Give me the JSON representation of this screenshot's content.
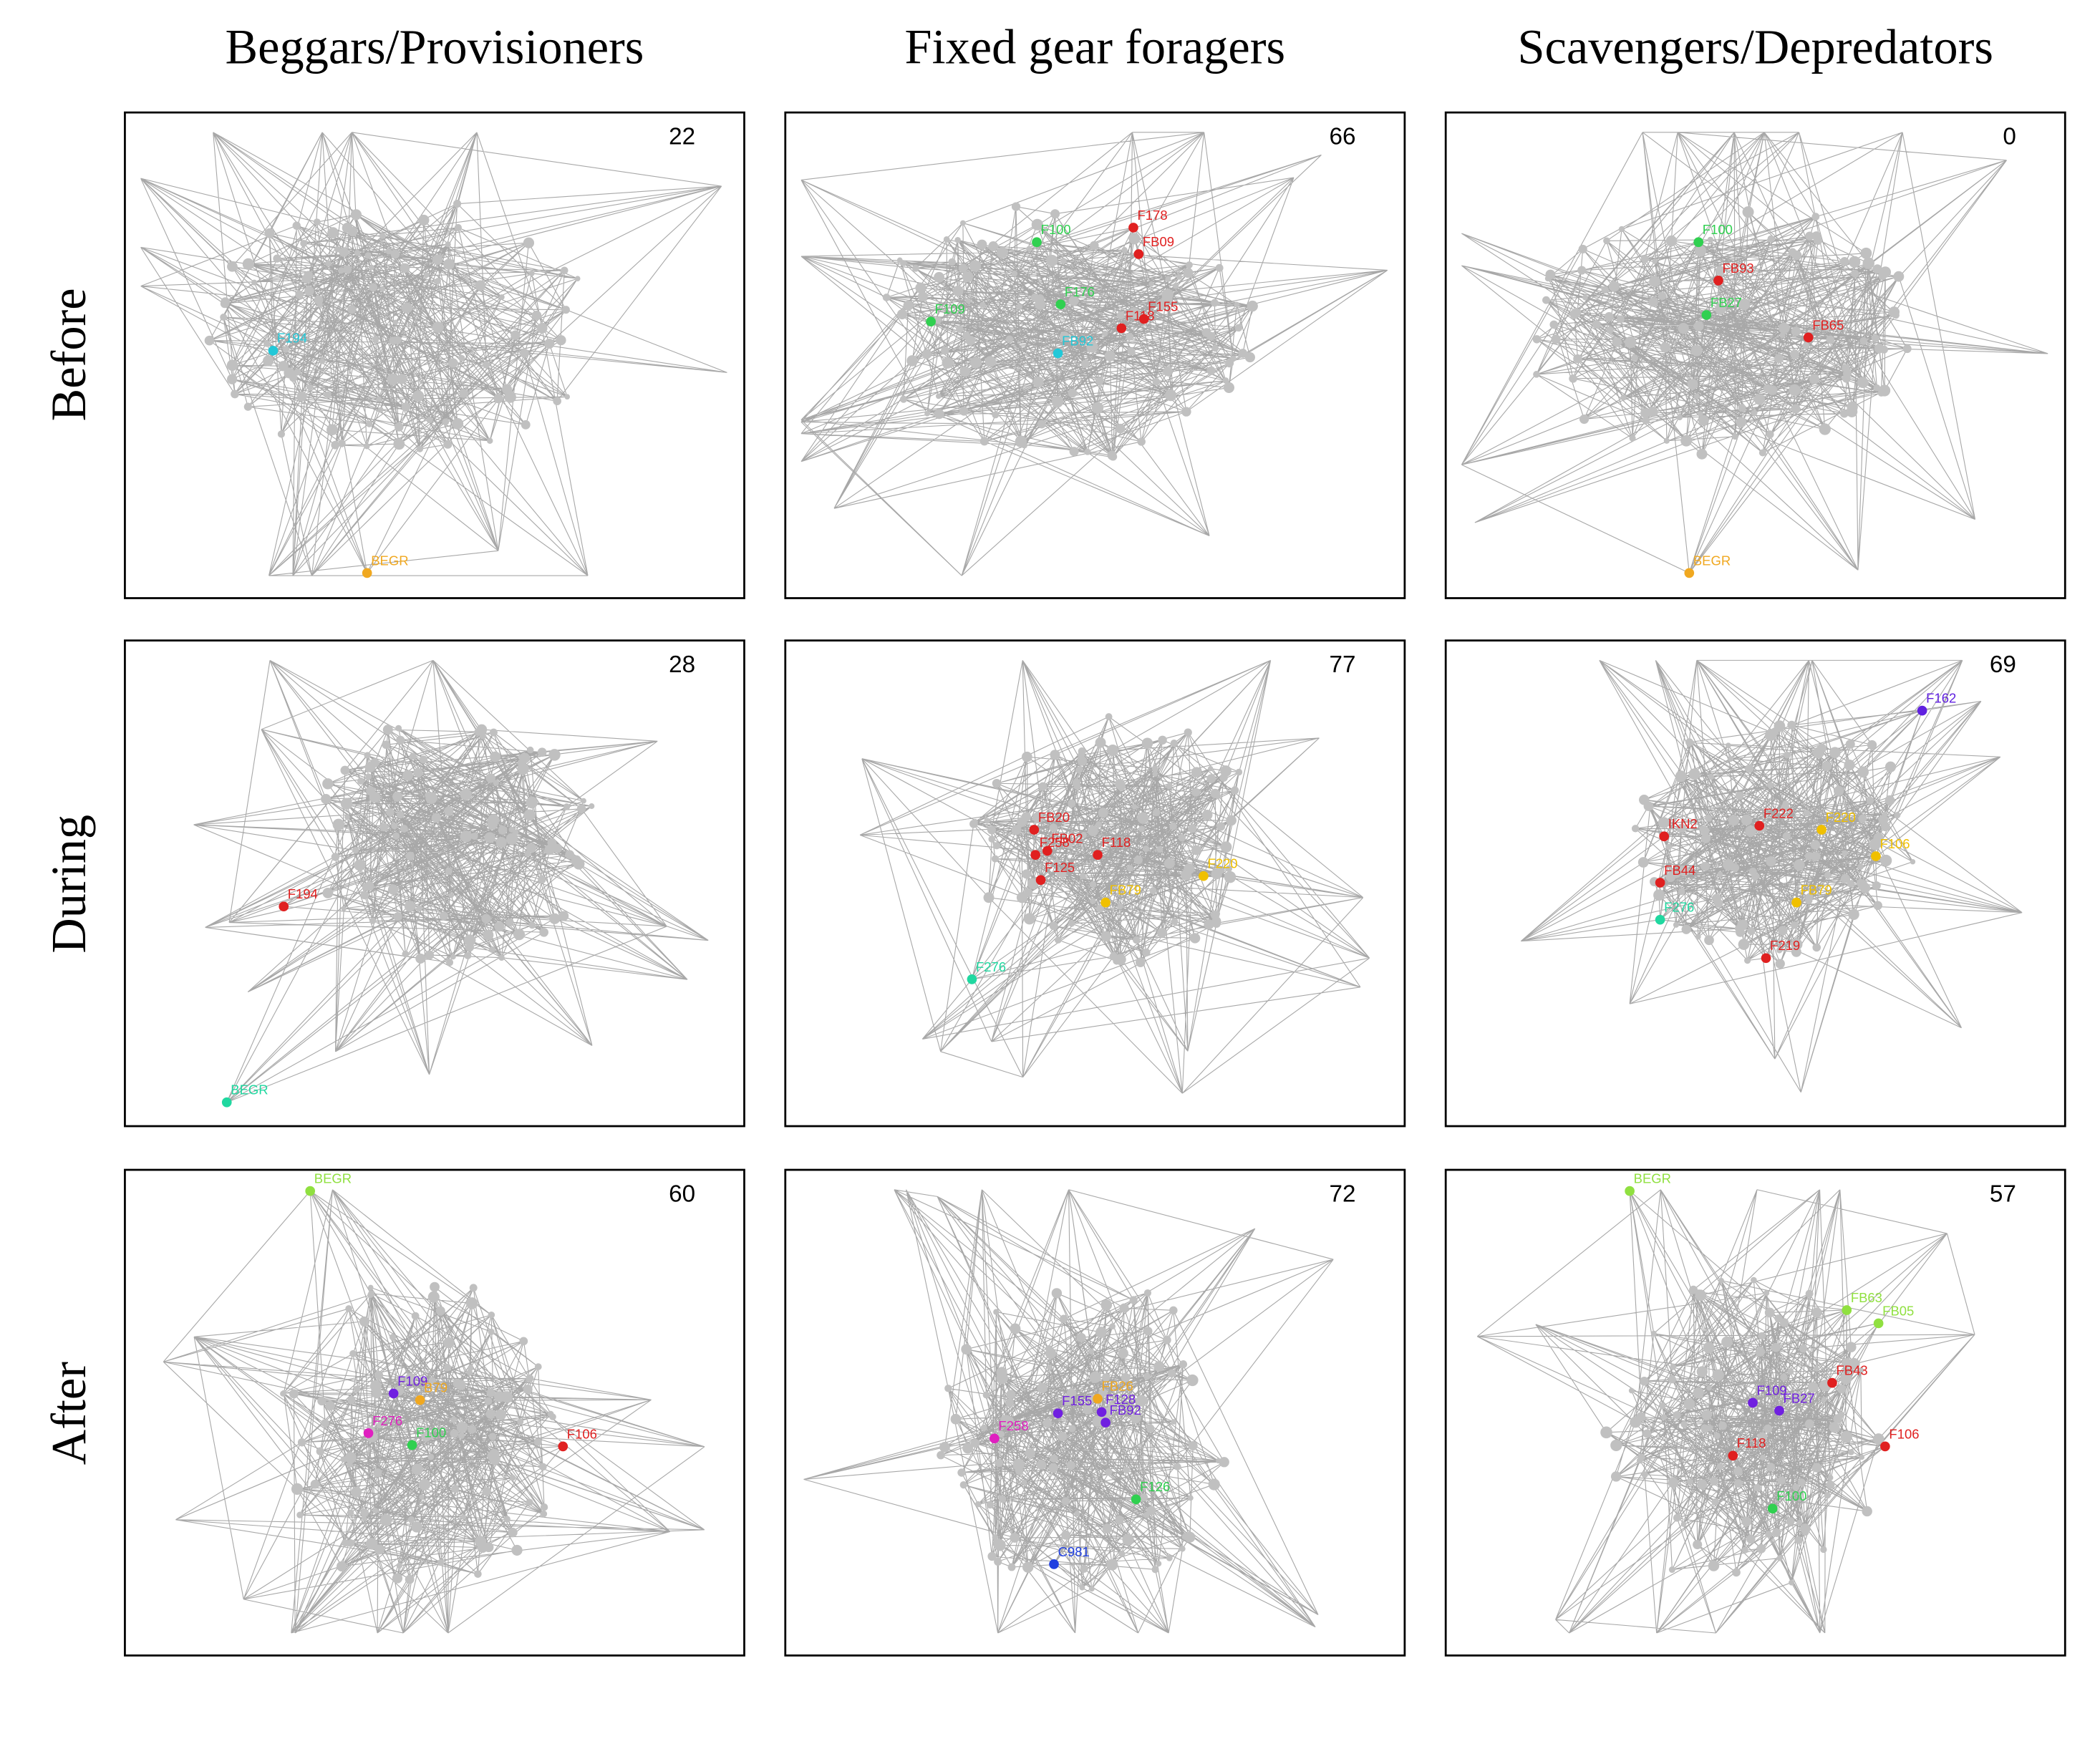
{
  "columns": [
    "Beggars/Provisioners",
    "Fixed gear foragers",
    "Scavengers/Depredators"
  ],
  "rows": [
    "Before",
    "During",
    "After"
  ],
  "panels": [
    {
      "count": "22",
      "nodes": [
        {
          "label": "F194",
          "color": "#22c8d8"
        },
        {
          "label": "BEGR",
          "color": "#f0a820"
        }
      ]
    },
    {
      "count": "66",
      "nodes": [
        {
          "label": "F178",
          "color": "#e02020"
        },
        {
          "label": "FB09",
          "color": "#e02020"
        },
        {
          "label": "F100",
          "color": "#30d050"
        },
        {
          "label": "F109",
          "color": "#30d050"
        },
        {
          "label": "F176",
          "color": "#30d050"
        },
        {
          "label": "F155",
          "color": "#e02020"
        },
        {
          "label": "F118",
          "color": "#e02020"
        },
        {
          "label": "FB92",
          "color": "#22c8d8"
        }
      ]
    },
    {
      "count": "0",
      "nodes": [
        {
          "label": "F100",
          "color": "#30d050"
        },
        {
          "label": "FB93",
          "color": "#e02020"
        },
        {
          "label": "FB27",
          "color": "#30d050"
        },
        {
          "label": "FB65",
          "color": "#e02020"
        },
        {
          "label": "BEGR",
          "color": "#f0a820"
        }
      ]
    },
    {
      "count": "28",
      "nodes": [
        {
          "label": "F194",
          "color": "#e02020"
        },
        {
          "label": "BEGR",
          "color": "#20d8a0"
        }
      ]
    },
    {
      "count": "77",
      "nodes": [
        {
          "label": "FB20",
          "color": "#e02020"
        },
        {
          "label": "FB02",
          "color": "#e02020"
        },
        {
          "label": "F258",
          "color": "#e02020"
        },
        {
          "label": "F118",
          "color": "#e02020"
        },
        {
          "label": "F125",
          "color": "#e02020"
        },
        {
          "label": "FB79",
          "color": "#f0c000"
        },
        {
          "label": "F220",
          "color": "#f0c000"
        },
        {
          "label": "F276",
          "color": "#20d8a0"
        }
      ]
    },
    {
      "count": "69",
      "nodes": [
        {
          "label": "F162",
          "color": "#6020e0"
        },
        {
          "label": "IKN2",
          "color": "#e02020"
        },
        {
          "label": "F222",
          "color": "#e02020"
        },
        {
          "label": "F220",
          "color": "#f0c000"
        },
        {
          "label": "F106",
          "color": "#f0c000"
        },
        {
          "label": "FB44",
          "color": "#e02020"
        },
        {
          "label": "FB79",
          "color": "#f0c000"
        },
        {
          "label": "F219",
          "color": "#e02020"
        },
        {
          "label": "F276",
          "color": "#20d8a0"
        }
      ]
    },
    {
      "count": "60",
      "nodes": [
        {
          "label": "BEGR",
          "color": "#90e040"
        },
        {
          "label": "F109",
          "color": "#7020e0"
        },
        {
          "label": "B79",
          "color": "#f0a820"
        },
        {
          "label": "F276",
          "color": "#e020c0"
        },
        {
          "label": "F100",
          "color": "#30d050"
        },
        {
          "label": "F106",
          "color": "#e02020"
        }
      ]
    },
    {
      "count": "72",
      "nodes": [
        {
          "label": "FB26",
          "color": "#f0a820"
        },
        {
          "label": "F155",
          "color": "#7020e0"
        },
        {
          "label": "F128",
          "color": "#7020e0"
        },
        {
          "label": "FB92",
          "color": "#7020e0"
        },
        {
          "label": "F258",
          "color": "#e020c0"
        },
        {
          "label": "F126",
          "color": "#30d050"
        },
        {
          "label": "C981",
          "color": "#2040e0"
        }
      ]
    },
    {
      "count": "57",
      "nodes": [
        {
          "label": "BEGR",
          "color": "#90e040"
        },
        {
          "label": "FB63",
          "color": "#90e040"
        },
        {
          "label": "FB05",
          "color": "#90e040"
        },
        {
          "label": "FB43",
          "color": "#e02020"
        },
        {
          "label": "F109",
          "color": "#7020e0"
        },
        {
          "label": "FB27",
          "color": "#7020e0"
        },
        {
          "label": "F118",
          "color": "#e02020"
        },
        {
          "label": "F106",
          "color": "#e02020"
        },
        {
          "label": "F100",
          "color": "#30d050"
        }
      ]
    }
  ]
}
